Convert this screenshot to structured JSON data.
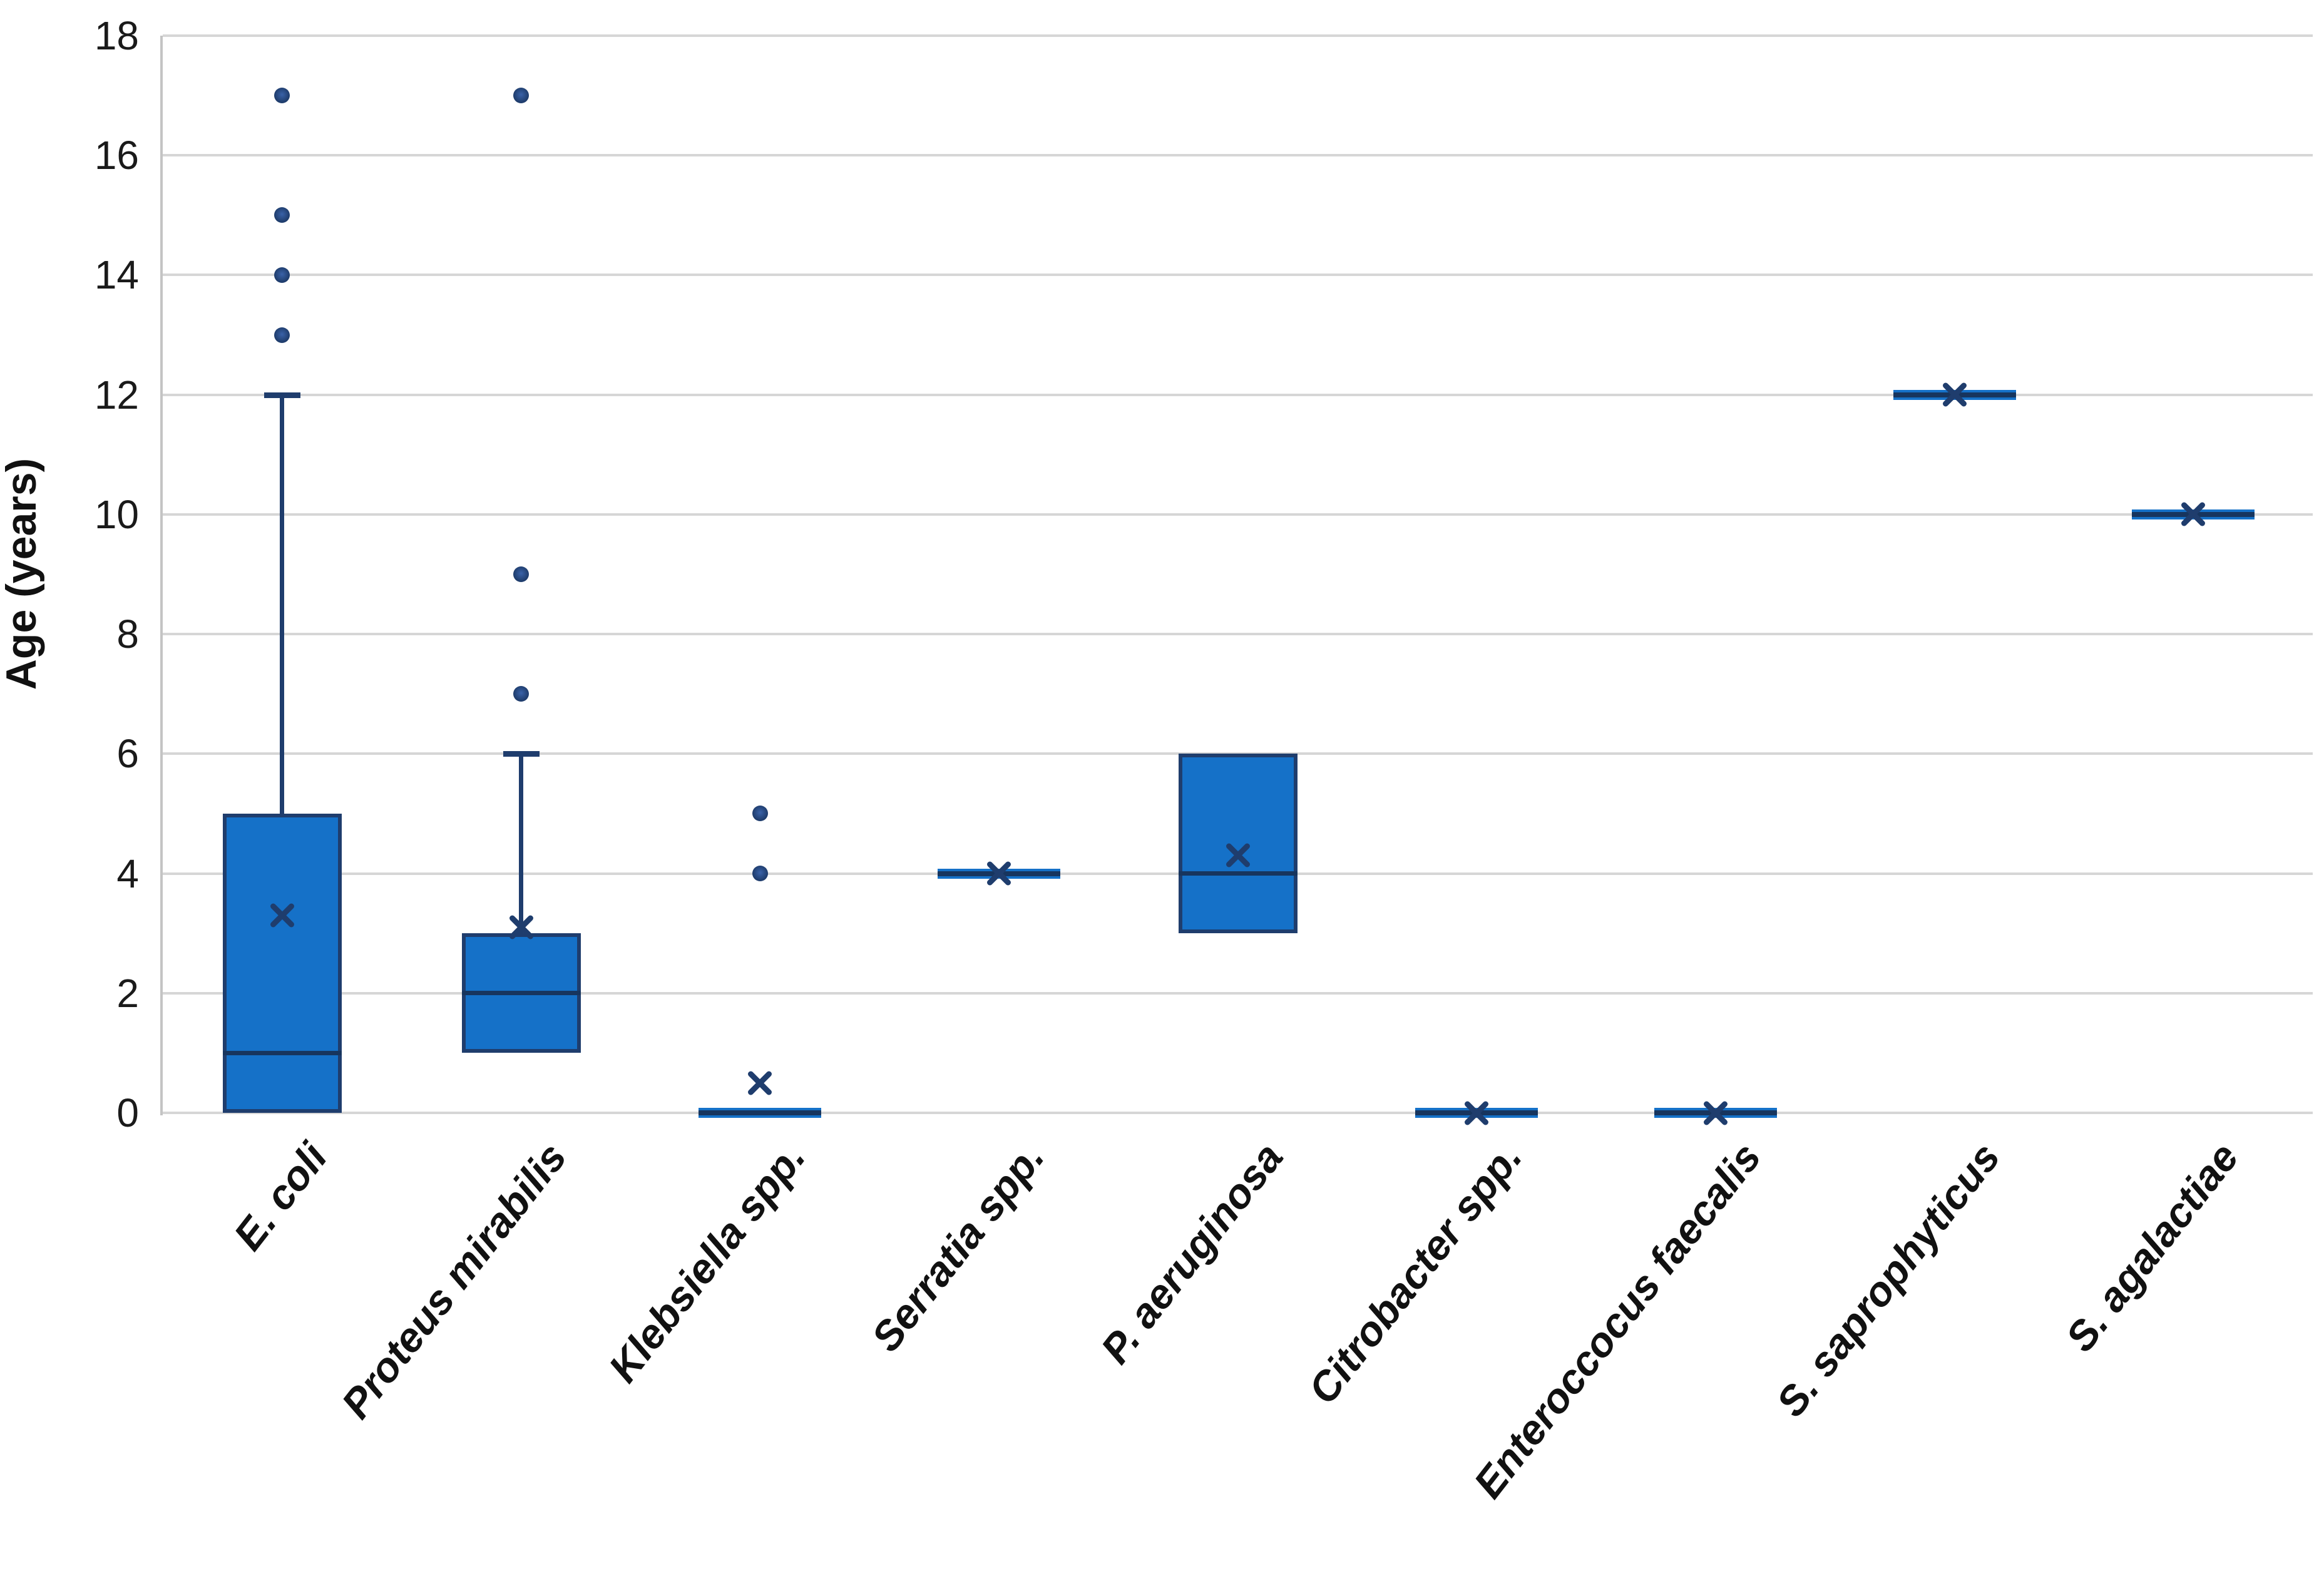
{
  "chart_data": {
    "type": "box",
    "title": "",
    "xlabel": "",
    "ylabel": "Age (years)",
    "ylim": [
      0,
      18
    ],
    "yticks": [
      0,
      2,
      4,
      6,
      8,
      10,
      12,
      14,
      16,
      18
    ],
    "grid": true,
    "legend": "none",
    "categories": [
      {
        "label": "E. coli",
        "q1": 0,
        "median": 1,
        "q3": 5,
        "whisker_low": null,
        "whisker_high": 12,
        "mean": 3.3,
        "outliers": [
          13,
          14,
          15,
          17
        ]
      },
      {
        "label": "Proteus mirabilis",
        "q1": 1,
        "median": 2,
        "q3": 3,
        "whisker_low": null,
        "whisker_high": 6,
        "mean": 3.1,
        "outliers": [
          7,
          9,
          17
        ]
      },
      {
        "label": "Klebsiella spp.",
        "q1": 0,
        "median": 0,
        "q3": 0,
        "whisker_low": null,
        "whisker_high": null,
        "mean": 0.5,
        "outliers": [
          4,
          5
        ]
      },
      {
        "label": "Serratia spp.",
        "q1": 4,
        "median": 4,
        "q3": 4,
        "whisker_low": null,
        "whisker_high": null,
        "mean": 4,
        "outliers": []
      },
      {
        "label": "P. aeruginosa",
        "q1": 3,
        "median": 4,
        "q3": 6,
        "whisker_low": null,
        "whisker_high": null,
        "mean": 4.3,
        "outliers": []
      },
      {
        "label": "Citrobacter spp.",
        "q1": 0,
        "median": 0,
        "q3": 0,
        "whisker_low": null,
        "whisker_high": null,
        "mean": 0,
        "outliers": []
      },
      {
        "label": "Enteroccocus faecalis",
        "q1": 0,
        "median": 0,
        "q3": 0,
        "whisker_low": null,
        "whisker_high": null,
        "mean": 0,
        "outliers": []
      },
      {
        "label": "S. saprophyticus",
        "q1": 12,
        "median": 12,
        "q3": 12,
        "whisker_low": null,
        "whisker_high": null,
        "mean": 12,
        "outliers": []
      },
      {
        "label": "S. agalactiae",
        "q1": 10,
        "median": 10,
        "q3": 10,
        "whisker_low": null,
        "whisker_high": null,
        "mean": 10,
        "outliers": []
      }
    ],
    "colors": {
      "box_fill": "#1571C8",
      "box_border": "#1F3D6D",
      "median": "#17355E",
      "whisker": "#1F3D6D",
      "mean_marker": "#1F3D6D",
      "outlier": "#1F3D6D",
      "outlier_center": "#3A62A8",
      "gridline": "#D6D6D6",
      "axis_line": "#C4C4C4",
      "tick_text": "#1A1A1A"
    }
  }
}
